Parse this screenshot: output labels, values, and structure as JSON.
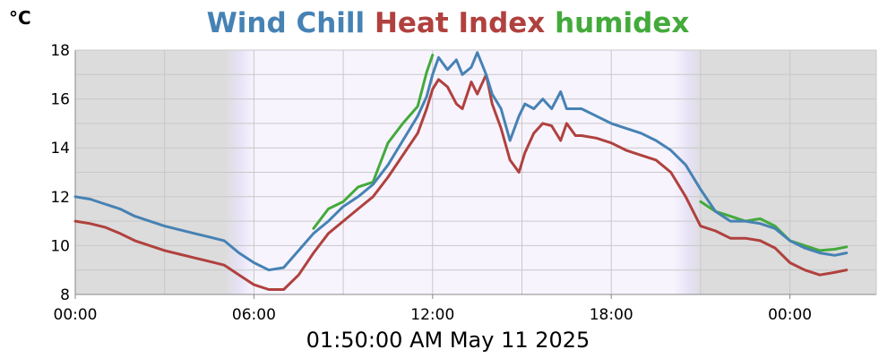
{
  "header": {
    "unit": "°C",
    "timestamp": "01:50:00 AM May 11 2025"
  },
  "colors": {
    "night_band": "#dcdcdc",
    "day_band": "#f7f4fe",
    "twilight": "#e6e0f6",
    "grid": "#c8c8c8",
    "axis": "#888888"
  },
  "chart_data": {
    "type": "line",
    "title": [
      "Wind Chill",
      "Heat Index",
      "humidex"
    ],
    "ylabel": "°C",
    "x_unit": "hours",
    "xlim": [
      0,
      26.9
    ],
    "ylim": [
      8,
      18
    ],
    "y_ticks": [
      8,
      10,
      12,
      14,
      16,
      18
    ],
    "y_tick_labels": [
      "8",
      "10",
      "12",
      "14",
      "16",
      "18"
    ],
    "x_ticks": [
      0,
      6,
      12,
      18,
      24
    ],
    "x_tick_labels": [
      "00:00",
      "06:00",
      "12:00",
      "18:00",
      "00:00"
    ],
    "grid": true,
    "legend": "title",
    "shading": {
      "night_before_until": 5.0,
      "sunrise_dawn": [
        5.0,
        6.0
      ],
      "day": [
        6.0,
        20.1
      ],
      "sunset_dusk": [
        20.1,
        21.1
      ]
    },
    "series": [
      {
        "name": "Wind Chill",
        "color": "#4682b4",
        "x": [
          0,
          0.5,
          1.0,
          1.5,
          2.0,
          2.5,
          3.0,
          3.5,
          4.0,
          4.5,
          5.0,
          5.5,
          6.0,
          6.5,
          7.0,
          7.5,
          8.0,
          8.5,
          9.0,
          9.5,
          10.0,
          10.5,
          11.0,
          11.5,
          11.8,
          12.0,
          12.2,
          12.5,
          12.8,
          13.0,
          13.3,
          13.5,
          13.8,
          14.0,
          14.3,
          14.6,
          14.9,
          15.1,
          15.4,
          15.7,
          16.0,
          16.3,
          16.5,
          16.8,
          17.0,
          17.5,
          18.0,
          18.5,
          19.0,
          19.5,
          20.0,
          20.5,
          21.0,
          21.5,
          22.0,
          22.5,
          23.0,
          23.5,
          24.0,
          24.5,
          25.0,
          25.5,
          25.9
        ],
        "y": [
          12.0,
          11.9,
          11.7,
          11.5,
          11.2,
          11.0,
          10.8,
          10.65,
          10.5,
          10.35,
          10.2,
          9.7,
          9.3,
          9.0,
          9.1,
          9.8,
          10.5,
          11.0,
          11.6,
          12.0,
          12.5,
          13.3,
          14.3,
          15.3,
          16.1,
          17.0,
          17.7,
          17.2,
          17.6,
          17.0,
          17.3,
          17.9,
          17.0,
          16.2,
          15.6,
          14.3,
          15.3,
          15.8,
          15.6,
          16.0,
          15.6,
          16.3,
          15.6,
          15.6,
          15.6,
          15.3,
          15.0,
          14.8,
          14.6,
          14.3,
          13.9,
          13.3,
          12.3,
          11.4,
          11.0,
          11.0,
          10.9,
          10.7,
          10.2,
          9.9,
          9.7,
          9.6,
          9.7
        ]
      },
      {
        "name": "Heat Index",
        "color": "#b0413e",
        "x": [
          0,
          0.5,
          1.0,
          1.5,
          2.0,
          2.5,
          3.0,
          3.5,
          4.0,
          4.5,
          5.0,
          5.5,
          6.0,
          6.5,
          7.0,
          7.5,
          8.0,
          8.5,
          9.0,
          9.5,
          10.0,
          10.5,
          11.0,
          11.5,
          11.8,
          12.0,
          12.2,
          12.5,
          12.8,
          13.0,
          13.3,
          13.5,
          13.8,
          14.0,
          14.3,
          14.6,
          14.9,
          15.1,
          15.4,
          15.7,
          16.0,
          16.3,
          16.5,
          16.8,
          17.0,
          17.5,
          18.0,
          18.5,
          19.0,
          19.5,
          20.0,
          20.5,
          21.0,
          21.5,
          22.0,
          22.5,
          23.0,
          23.5,
          24.0,
          24.5,
          25.0,
          25.5,
          25.9
        ],
        "y": [
          11.0,
          10.9,
          10.75,
          10.5,
          10.2,
          10.0,
          9.8,
          9.65,
          9.5,
          9.35,
          9.2,
          8.8,
          8.4,
          8.2,
          8.2,
          8.8,
          9.7,
          10.5,
          11.0,
          11.5,
          12.0,
          12.8,
          13.7,
          14.6,
          15.6,
          16.4,
          16.8,
          16.5,
          15.8,
          15.6,
          16.7,
          16.2,
          17.0,
          15.8,
          14.8,
          13.5,
          13.0,
          13.8,
          14.6,
          15.0,
          14.9,
          14.3,
          15.0,
          14.5,
          14.5,
          14.4,
          14.2,
          13.9,
          13.7,
          13.5,
          13.0,
          12.0,
          10.8,
          10.6,
          10.3,
          10.3,
          10.2,
          9.9,
          9.3,
          9.0,
          8.8,
          8.9,
          9.0
        ]
      },
      {
        "name": "humidex",
        "color": "#43aa3b",
        "x": [
          8.0,
          8.5,
          9.0,
          9.5,
          10.0,
          10.5,
          11.0,
          11.5,
          11.8,
          12.0,
          21.0,
          21.5,
          22.0,
          22.5,
          23.0,
          23.5,
          24.0,
          24.5,
          25.0,
          25.5,
          25.9
        ],
        "y": [
          10.7,
          11.5,
          11.8,
          12.4,
          12.6,
          14.2,
          15.0,
          15.7,
          17.1,
          17.8,
          11.8,
          11.4,
          11.2,
          11.0,
          11.1,
          10.8,
          10.2,
          10.0,
          9.8,
          9.85,
          9.95
        ]
      }
    ]
  }
}
